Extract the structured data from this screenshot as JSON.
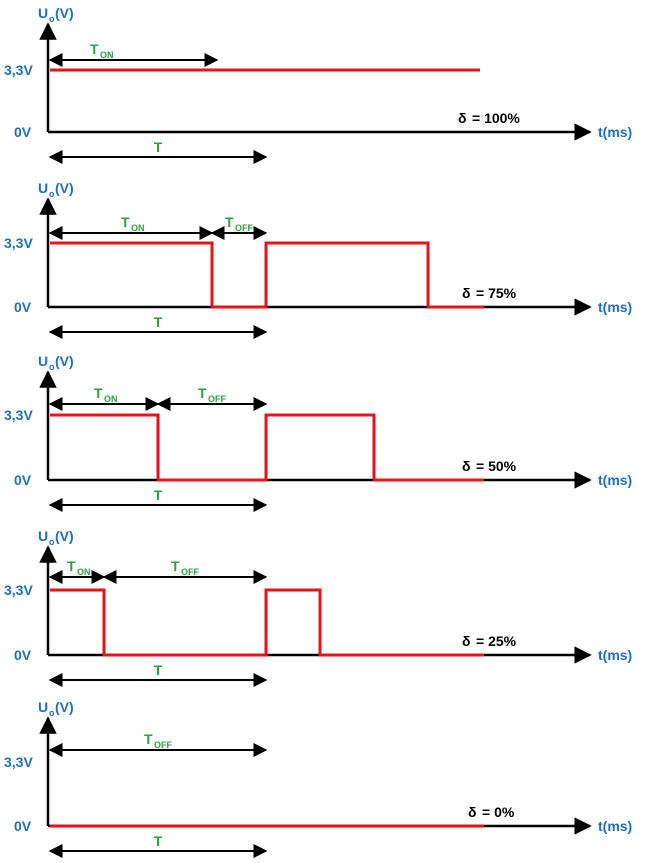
{
  "colors": {
    "axis": "#000000",
    "signal": "#e8141c",
    "axis_label": "#1f6fbf",
    "time_label": "#2ea043",
    "duty_label": "#000000"
  },
  "labels": {
    "y_axis_main": "U",
    "y_axis_sub": "o",
    "y_axis_unit": "(V)",
    "x_axis": "t(ms)",
    "high_level": "3,3V",
    "low_level": "0V",
    "period": "T",
    "t_main": "T",
    "on_sub": "ON",
    "off_sub": "OFF",
    "delta": "δ"
  },
  "panels": [
    {
      "duty_text": "= 100%",
      "duty": 1.0,
      "show_ton": true,
      "show_toff": false
    },
    {
      "duty_text": "= 75%",
      "duty": 0.75,
      "show_ton": true,
      "show_toff": true
    },
    {
      "duty_text": "= 50%",
      "duty": 0.5,
      "show_ton": true,
      "show_toff": true
    },
    {
      "duty_text": "= 25%",
      "duty": 0.25,
      "show_ton": true,
      "show_toff": true
    },
    {
      "duty_text": "= 0%",
      "duty": 0.0,
      "show_ton": false,
      "show_toff": true
    }
  ]
}
